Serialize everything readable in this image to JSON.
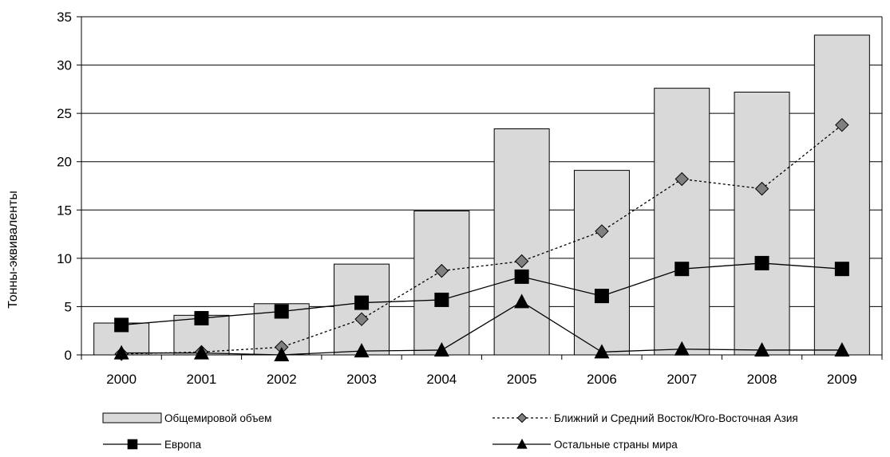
{
  "chart_data": {
    "type": "bar",
    "title": "",
    "xlabel": "",
    "ylabel": "Тонны-эквиваленты",
    "ylim": [
      0,
      35
    ],
    "yticks": [
      0,
      5,
      10,
      15,
      20,
      25,
      30,
      35
    ],
    "grid": true,
    "legend_position": "bottom",
    "categories": [
      "2000",
      "2001",
      "2002",
      "2003",
      "2004",
      "2005",
      "2006",
      "2007",
      "2008",
      "2009"
    ],
    "series": [
      {
        "name": "Общемировой объем",
        "type": "bar",
        "color": "#d9d9d9",
        "values": [
          3.3,
          4.1,
          5.3,
          9.4,
          14.9,
          23.4,
          19.1,
          27.6,
          27.2,
          33.1
        ]
      },
      {
        "name": "Ближний и Средний Восток/Юго-Восточная Азия",
        "type": "line",
        "line_style": "dotted",
        "marker": "diamond",
        "color": "#808080",
        "values": [
          0.1,
          0.3,
          0.8,
          3.7,
          8.7,
          9.7,
          12.8,
          18.2,
          17.2,
          23.8
        ]
      },
      {
        "name": "Европа",
        "type": "line",
        "line_style": "solid",
        "marker": "square",
        "color": "#000000",
        "values": [
          3.1,
          3.8,
          4.5,
          5.4,
          5.7,
          8.1,
          6.1,
          8.9,
          9.5,
          8.9
        ]
      },
      {
        "name": "Остальные страны мира",
        "type": "line",
        "line_style": "solid",
        "marker": "triangle",
        "color": "#000000",
        "values": [
          0.2,
          0.2,
          0.0,
          0.4,
          0.5,
          5.5,
          0.3,
          0.6,
          0.5,
          0.5
        ]
      }
    ]
  }
}
